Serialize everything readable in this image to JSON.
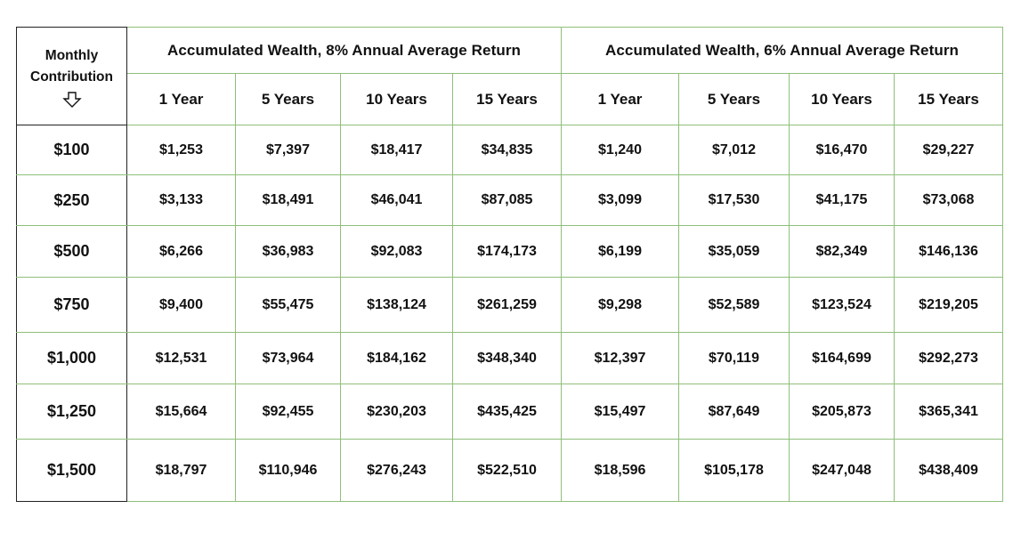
{
  "table": {
    "row_header": {
      "line1": "Monthly",
      "line2": "Contribution",
      "icon": "down-arrow-icon"
    },
    "groups": [
      {
        "title": "Accumulated Wealth,  8% Annual Average Return",
        "years": [
          "1 Year",
          "5 Years",
          "10 Years",
          "15 Years"
        ]
      },
      {
        "title": "Accumulated Wealth,  6% Annual Average Return",
        "years": [
          "1 Year",
          "5 Years",
          "10 Years",
          "15 Years"
        ]
      }
    ],
    "rows": [
      {
        "contribution": "$100",
        "values": [
          "$1,253",
          "$7,397",
          "$18,417",
          "$34,835",
          "$1,240",
          "$7,012",
          "$16,470",
          "$29,227"
        ]
      },
      {
        "contribution": "$250",
        "values": [
          "$3,133",
          "$18,491",
          "$46,041",
          "$87,085",
          "$3,099",
          "$17,530",
          "$41,175",
          "$73,068"
        ]
      },
      {
        "contribution": "$500",
        "values": [
          "$6,266",
          "$36,983",
          "$92,083",
          "$174,173",
          "$6,199",
          "$35,059",
          "$82,349",
          "$146,136"
        ]
      },
      {
        "contribution": "$750",
        "values": [
          "$9,400",
          "$55,475",
          "$138,124",
          "$261,259",
          "$9,298",
          "$52,589",
          "$123,524",
          "$219,205"
        ]
      },
      {
        "contribution": "$1,000",
        "values": [
          "$12,531",
          "$73,964",
          "$184,162",
          "$348,340",
          "$12,397",
          "$70,119",
          "$164,699",
          "$292,273"
        ]
      },
      {
        "contribution": "$1,250",
        "values": [
          "$15,664",
          "$92,455",
          "$230,203",
          "$435,425",
          "$15,497",
          "$87,649",
          "$205,873",
          "$365,341"
        ]
      },
      {
        "contribution": "$1,500",
        "values": [
          "$18,797",
          "$110,946",
          "$276,243",
          "$522,510",
          "$18,596",
          "$105,178",
          "$247,048",
          "$438,409"
        ]
      }
    ],
    "colors": {
      "grid_line": "#8fbf7a",
      "label_border": "#222222",
      "text": "#111111",
      "background": "#ffffff"
    }
  }
}
